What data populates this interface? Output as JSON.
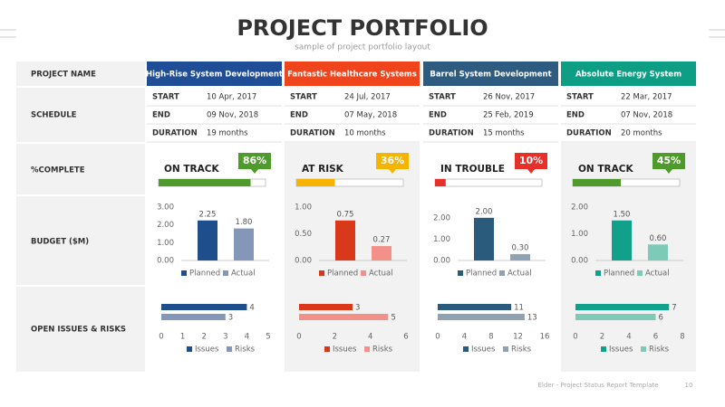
{
  "header": {
    "title": "PROJECT PORTFOLIO",
    "subtitle": "sample of project portfolio layout"
  },
  "row_labels": {
    "name": "PROJECT NAME",
    "schedule": "SCHEDULE",
    "complete": "%COMPLETE",
    "budget": "BUDGET ($M)",
    "issues": "OPEN ISSUES & RISKS"
  },
  "schedule_labels": {
    "start": "START",
    "end": "END",
    "duration": "DURATION"
  },
  "projects": [
    {
      "name": "High-Rise System Development",
      "color": "#1f4e96",
      "start": "10 Apr, 2017",
      "end": "09 Nov, 2018",
      "duration": "19 months",
      "status": "ON TRACK",
      "percent": {
        "value": 86,
        "label": "86%"
      },
      "progress_color": "#4e9a2a",
      "budget": {
        "ylim": [
          0,
          3
        ],
        "yticks": [
          {
            "value": 0,
            "label": "0.00"
          },
          {
            "value": 1,
            "label": "1.00"
          },
          {
            "value": 2,
            "label": "2.00"
          },
          {
            "value": 3,
            "label": "3.00"
          }
        ],
        "series": [
          {
            "name": "Planned",
            "color": "#1f4e8c",
            "value": 2.25
          },
          {
            "name": "Actual",
            "color": "#8497b8",
            "value": 1.8,
            "value_label": "1.80"
          }
        ]
      },
      "issues": {
        "xlim": [
          0,
          5
        ],
        "xticks": [
          0,
          1,
          2,
          3,
          4,
          5
        ],
        "series": [
          {
            "name": "Issues",
            "color": "#1f4e8c",
            "value": 4
          },
          {
            "name": "Risks",
            "color": "#8497b8",
            "value": 3
          }
        ]
      }
    },
    {
      "name": "Fantastic Healthcare Systems",
      "color": "#f0441c",
      "start": "24 Jul, 2017",
      "end": "07 May, 2018",
      "duration": "10 months",
      "status": "AT RISK",
      "percent": {
        "value": 36,
        "label": "36%"
      },
      "progress_color": "#f5b400",
      "budget": {
        "ylim": [
          0,
          1
        ],
        "yticks": [
          {
            "value": 0,
            "label": "0.00"
          },
          {
            "value": 0.5,
            "label": "0.50"
          },
          {
            "value": 1,
            "label": "1.00"
          }
        ],
        "series": [
          {
            "name": "Planned",
            "color": "#d9391a",
            "value": 0.75
          },
          {
            "name": "Actual",
            "color": "#f4908a",
            "value": 0.27
          }
        ]
      },
      "issues": {
        "xlim": [
          0,
          6
        ],
        "xticks": [
          0,
          2,
          4,
          6
        ],
        "series": [
          {
            "name": "Issues",
            "color": "#d9391a",
            "value": 3
          },
          {
            "name": "Risks",
            "color": "#f4908a",
            "value": 5
          }
        ]
      }
    },
    {
      "name": "Barrel System Development",
      "color": "#2e5c80",
      "start": "26 Nov, 2017",
      "end": "25 Feb, 2019",
      "duration": "15 months",
      "status": "IN TROUBLE",
      "percent": {
        "value": 10,
        "label": "10%"
      },
      "progress_color": "#e8302a",
      "budget": {
        "ylim": [
          0,
          2.5
        ],
        "yticks": [
          {
            "value": 0,
            "label": "0.00"
          },
          {
            "value": 1,
            "label": "1.00"
          },
          {
            "value": 2,
            "label": "2.00"
          }
        ],
        "series": [
          {
            "name": "Planned",
            "color": "#2a5a7c",
            "value": 2,
            "value_label": "2.00"
          },
          {
            "name": "Actual",
            "color": "#8fa2b4",
            "value": 0.3,
            "value_label": "0.30"
          }
        ]
      },
      "issues": {
        "xlim": [
          0,
          16
        ],
        "xticks": [
          0,
          4,
          8,
          12,
          16
        ],
        "series": [
          {
            "name": "Issues",
            "color": "#2a5a7c",
            "value": 11
          },
          {
            "name": "Risks",
            "color": "#8fa2b4",
            "value": 13
          }
        ]
      }
    },
    {
      "name": "Absolute Energy System",
      "color": "#0e9e86",
      "start": "22 Mar, 2017",
      "end": "07 Nov, 2018",
      "duration": "20 months",
      "status": "ON TRACK",
      "percent": {
        "value": 45,
        "label": "45%"
      },
      "progress_color": "#4e9a2a",
      "budget": {
        "ylim": [
          0,
          2
        ],
        "yticks": [
          {
            "value": 0,
            "label": "0.00"
          },
          {
            "value": 1,
            "label": "1.00"
          },
          {
            "value": 2,
            "label": "2.00"
          }
        ],
        "series": [
          {
            "name": "Planned",
            "color": "#11a08a",
            "value": 1.5,
            "value_label": "1.50"
          },
          {
            "name": "Actual",
            "color": "#7dcab6",
            "value": 0.6,
            "value_label": "0.60"
          }
        ]
      },
      "issues": {
        "xlim": [
          0,
          8
        ],
        "xticks": [
          0,
          2,
          4,
          6,
          8
        ],
        "series": [
          {
            "name": "Issues",
            "color": "#11a08a",
            "value": 7
          },
          {
            "name": "Risks",
            "color": "#7dcab6",
            "value": 6
          }
        ]
      }
    }
  ],
  "footer": {
    "text": "Elder - Project Status Report Template",
    "page": "10"
  }
}
